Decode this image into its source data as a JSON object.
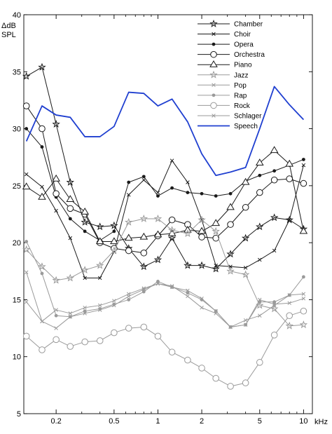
{
  "chart_data": {
    "type": "line",
    "title": "",
    "ylabel": "ΔdB",
    "ylabel_unit": "SPL",
    "xlabel": "kHz",
    "x_scale": "log",
    "xlim": [
      0.12,
      11.5
    ],
    "ylim": [
      5,
      40
    ],
    "y_ticks": [
      5,
      10,
      15,
      20,
      25,
      30,
      35,
      40
    ],
    "x_ticks": [
      {
        "value": 0.2,
        "label": "0.2"
      },
      {
        "value": 0.5,
        "label": "0.5"
      },
      {
        "value": 1,
        "label": "1"
      },
      {
        "value": 2,
        "label": "2"
      },
      {
        "value": 5,
        "label": "5"
      },
      {
        "value": 10,
        "label": "10"
      }
    ],
    "x_minor_ticks": [
      0.3,
      0.4,
      0.6,
      0.7,
      0.8,
      0.9,
      3,
      4,
      6,
      7,
      8,
      9
    ],
    "grid": false,
    "legend_position": "top-right",
    "x": [
      0.125,
      0.16,
      0.2,
      0.25,
      0.315,
      0.4,
      0.5,
      0.63,
      0.8,
      1.0,
      1.25,
      1.6,
      2.0,
      2.5,
      3.15,
      4.0,
      5.0,
      6.3,
      8.0,
      10.0
    ],
    "series": [
      {
        "name": "Chamber",
        "color": "#1a1a1a",
        "marker": "star",
        "values": [
          34.6,
          35.4,
          30.4,
          25.3,
          21.8,
          21.4,
          21.5,
          19.5,
          17.9,
          18.5,
          20.4,
          18.0,
          18.0,
          17.7,
          19.0,
          20.4,
          21.4,
          22.2,
          22.0,
          21.2
        ]
      },
      {
        "name": "Choir",
        "color": "#1a1a1a",
        "marker": "x",
        "values": [
          26.0,
          24.9,
          22.8,
          20.4,
          16.9,
          16.9,
          19.2,
          24.2,
          25.5,
          24.4,
          27.2,
          25.3,
          22.0,
          18.0,
          17.9,
          17.8,
          18.5,
          19.3,
          22.0,
          26.8
        ]
      },
      {
        "name": "Opera",
        "color": "#1a1a1a",
        "marker": "dot",
        "values": [
          30.0,
          28.4,
          24.0,
          22.1,
          21.0,
          20.2,
          21.0,
          25.3,
          25.8,
          24.1,
          24.8,
          24.4,
          24.3,
          24.1,
          24.3,
          25.4,
          25.9,
          26.3,
          26.8,
          27.3
        ]
      },
      {
        "name": "Orchestra",
        "color": "#1a1a1a",
        "marker": "circle",
        "values": [
          32.0,
          30.0,
          24.3,
          23.0,
          22.5,
          20.0,
          19.5,
          19.3,
          19.1,
          20.6,
          22.0,
          21.6,
          20.5,
          20.4,
          21.6,
          23.1,
          24.4,
          25.5,
          25.6,
          25.2
        ]
      },
      {
        "name": "Piano",
        "color": "#1a1a1a",
        "marker": "triangle",
        "values": [
          24.9,
          24.0,
          25.6,
          23.8,
          22.7,
          20.1,
          20.1,
          20.4,
          20.5,
          20.7,
          20.8,
          21.1,
          21.0,
          21.7,
          23.1,
          25.3,
          27.0,
          28.1,
          26.9,
          21.0
        ]
      },
      {
        "name": "Jazz",
        "color": "#9a9a9a",
        "marker": "star",
        "values": [
          19.4,
          17.9,
          16.7,
          16.9,
          17.6,
          18.0,
          19.3,
          21.8,
          22.1,
          22.1,
          21.1,
          20.8,
          22.0,
          21.0,
          17.5,
          17.2,
          14.5,
          14.2,
          12.7,
          12.8
        ]
      },
      {
        "name": "Pop",
        "color": "#9a9a9a",
        "marker": "x",
        "values": [
          17.4,
          13.1,
          12.5,
          13.5,
          13.8,
          14.1,
          14.5,
          15.3,
          15.9,
          16.4,
          16.2,
          15.3,
          14.3,
          13.8,
          12.6,
          13.2,
          13.6,
          14.5,
          15.4,
          15.5
        ]
      },
      {
        "name": "Rap",
        "color": "#9a9a9a",
        "marker": "dot",
        "values": [
          20.1,
          17.3,
          13.6,
          13.5,
          14.0,
          14.2,
          14.6,
          15.0,
          15.7,
          16.6,
          16.1,
          15.6,
          15.0,
          14.0,
          12.6,
          12.8,
          14.8,
          14.8,
          15.4,
          17.0
        ]
      },
      {
        "name": "Rock",
        "color": "#9a9a9a",
        "marker": "circle",
        "values": [
          11.8,
          10.6,
          11.5,
          10.9,
          11.3,
          11.4,
          12.1,
          12.5,
          12.6,
          11.8,
          10.4,
          9.7,
          9.0,
          8.1,
          7.4,
          7.7,
          9.5,
          11.9,
          13.6,
          14.0
        ]
      },
      {
        "name": "Schlager",
        "color": "#9a9a9a",
        "marker": "x",
        "values": [
          14.8,
          13.1,
          14.1,
          13.8,
          14.3,
          14.5,
          14.9,
          15.5,
          16.0,
          16.4,
          16.1,
          15.8,
          15.1,
          14.0,
          12.6,
          12.8,
          15.0,
          14.6,
          14.7,
          15.1
        ]
      },
      {
        "name": "Speech",
        "color": "#1f3fd0",
        "marker": "none",
        "values": [
          28.9,
          32.0,
          31.2,
          31.0,
          29.3,
          29.3,
          30.2,
          33.2,
          33.1,
          32.0,
          32.6,
          30.6,
          27.8,
          25.9,
          26.2,
          26.6,
          30.0,
          33.7,
          32.1,
          30.8
        ]
      }
    ]
  }
}
